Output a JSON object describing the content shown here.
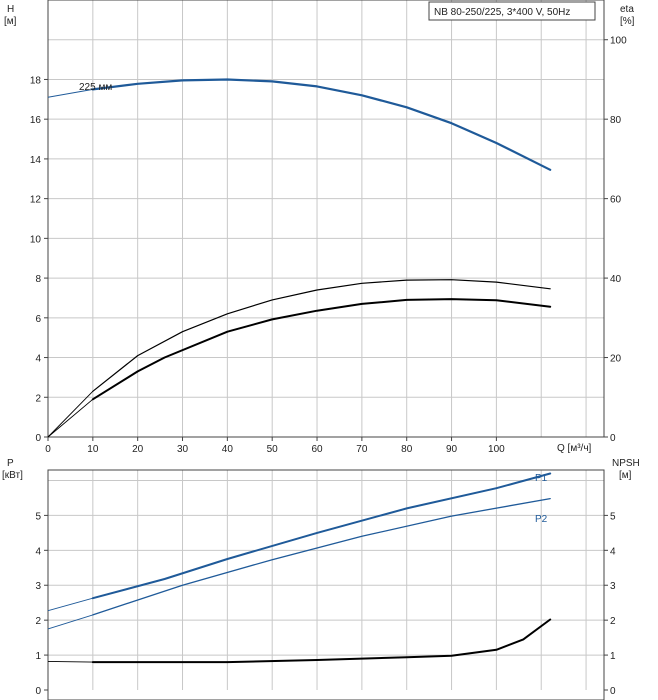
{
  "chart_data": [
    {
      "type": "line",
      "title_box": "NB 80-250/225, 3*400 V, 50Hz",
      "x_axis": {
        "label": "Q [м³/ч]",
        "range": [
          0,
          124
        ],
        "ticks": [
          0,
          10,
          20,
          30,
          40,
          50,
          60,
          70,
          80,
          90,
          100
        ]
      },
      "y_left": {
        "label_line1": "H",
        "label_line2": "[м]",
        "range": [
          0,
          22
        ],
        "ticks": [
          0,
          2,
          4,
          6,
          8,
          10,
          12,
          14,
          16,
          18
        ]
      },
      "y_right": {
        "label_line1": "eta",
        "label_line2": "[%]",
        "range": [
          0,
          110
        ],
        "ticks": [
          0,
          20,
          40,
          60,
          80,
          100
        ]
      },
      "grid": true,
      "series": [
        {
          "name": "225 мм",
          "axis": "left",
          "color": "#1f5a99",
          "dashed_start": [
            [
              0,
              17.1
            ],
            [
              10,
              17.5
            ]
          ],
          "points": [
            [
              10,
              17.5
            ],
            [
              20,
              17.78
            ],
            [
              30,
              17.95
            ],
            [
              40,
              18.0
            ],
            [
              50,
              17.9
            ],
            [
              60,
              17.65
            ],
            [
              70,
              17.2
            ],
            [
              80,
              16.6
            ],
            [
              90,
              15.8
            ],
            [
              100,
              14.8
            ],
            [
              112,
              13.45
            ]
          ]
        },
        {
          "axis": "right",
          "color": "#000000",
          "width": 1.2,
          "thin_start": [
            [
              0,
              0
            ],
            [
              10,
              11.5
            ]
          ],
          "points": [
            [
              10,
              11.5
            ],
            [
              20,
              20.5
            ],
            [
              30,
              26.5
            ],
            [
              40,
              31
            ],
            [
              50,
              34.5
            ],
            [
              60,
              37
            ],
            [
              70,
              38.7
            ],
            [
              80,
              39.5
            ],
            [
              90,
              39.6
            ],
            [
              100,
              39
            ],
            [
              112,
              37.3
            ]
          ]
        },
        {
          "axis": "right",
          "color": "#000000",
          "width": 2,
          "thin_start": [
            [
              0,
              0
            ],
            [
              10,
              9.5
            ]
          ],
          "points": [
            [
              10,
              9.5
            ],
            [
              20,
              16.5
            ],
            [
              26,
              20
            ],
            [
              40,
              26.5
            ],
            [
              50,
              29.6
            ],
            [
              60,
              31.8
            ],
            [
              70,
              33.5
            ],
            [
              80,
              34.5
            ],
            [
              90,
              34.7
            ],
            [
              100,
              34.4
            ],
            [
              112,
              32.8
            ]
          ]
        }
      ]
    },
    {
      "type": "line",
      "x_axis": {
        "range": [
          0,
          124
        ],
        "ticks": []
      },
      "y_left": {
        "label_line1": "P",
        "label_line2": "[кВт]",
        "range": [
          0,
          6.3
        ],
        "ticks": [
          0,
          1,
          2,
          3,
          4,
          5
        ]
      },
      "y_right": {
        "label_line1": "NPSH",
        "label_line2": "[м]",
        "range": [
          0,
          6.3
        ],
        "ticks": [
          0,
          1,
          2,
          3,
          4,
          5
        ]
      },
      "grid": true,
      "series": [
        {
          "name": "P1",
          "axis": "left",
          "color": "#1f5a99",
          "width": 2,
          "thin_start": [
            [
              0,
              2.27
            ],
            [
              10,
              2.63
            ]
          ],
          "points": [
            [
              10,
              2.63
            ],
            [
              26,
              3.18
            ],
            [
              40,
              3.75
            ],
            [
              60,
              4.5
            ],
            [
              80,
              5.2
            ],
            [
              100,
              5.78
            ],
            [
              112,
              6.2
            ]
          ]
        },
        {
          "name": "P2",
          "axis": "left",
          "color": "#1f5a99",
          "width": 1.3,
          "thin_start": [
            [
              0,
              1.75
            ],
            [
              10,
              2.15
            ]
          ],
          "points": [
            [
              10,
              2.15
            ],
            [
              30,
              3.0
            ],
            [
              50,
              3.73
            ],
            [
              70,
              4.4
            ],
            [
              90,
              4.98
            ],
            [
              112,
              5.48
            ]
          ]
        },
        {
          "axis": "right",
          "color": "#000000",
          "width": 2,
          "thin_start": [
            [
              0,
              0.82
            ],
            [
              10,
              0.8
            ]
          ],
          "points": [
            [
              10,
              0.8
            ],
            [
              40,
              0.8
            ],
            [
              60,
              0.86
            ],
            [
              80,
              0.94
            ],
            [
              90,
              0.98
            ],
            [
              100,
              1.15
            ],
            [
              106,
              1.45
            ],
            [
              112,
              2.02
            ]
          ]
        }
      ]
    }
  ]
}
